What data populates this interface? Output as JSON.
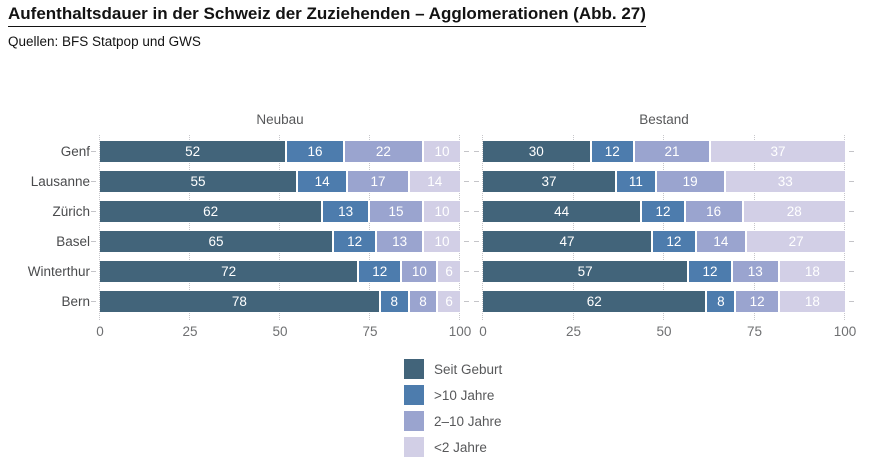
{
  "header": {
    "title": "Aufenthaltsdauer in der Schweiz der Zuziehenden – Agglomerationen  (Abb. 27)",
    "source": "Quellen: BFS Statpop und GWS"
  },
  "chart_data": {
    "type": "bar",
    "orientation": "horizontal",
    "stacked": true,
    "grid": "dotted-vertical",
    "categories": [
      "Genf",
      "Lausanne",
      "Zürich",
      "Basel",
      "Winterthur",
      "Bern"
    ],
    "xlim": [
      0,
      100
    ],
    "xticks": [
      0,
      25,
      50,
      75,
      100
    ],
    "panels": [
      {
        "title": "Neubau",
        "series": [
          {
            "name": "Seit Geburt",
            "values": [
              52,
              55,
              62,
              65,
              72,
              78
            ]
          },
          {
            "name": ">10 Jahre",
            "values": [
              16,
              14,
              13,
              12,
              12,
              8
            ]
          },
          {
            "name": "2–10 Jahre",
            "values": [
              22,
              17,
              15,
              13,
              10,
              8
            ]
          },
          {
            "name": "<2 Jahre",
            "values": [
              10,
              14,
              10,
              10,
              6,
              6
            ]
          }
        ]
      },
      {
        "title": "Bestand",
        "series": [
          {
            "name": "Seit Geburt",
            "values": [
              30,
              37,
              44,
              47,
              57,
              62
            ]
          },
          {
            "name": ">10 Jahre",
            "values": [
              12,
              11,
              12,
              12,
              12,
              8
            ]
          },
          {
            "name": "2–10 Jahre",
            "values": [
              21,
              19,
              16,
              14,
              13,
              12
            ]
          },
          {
            "name": "<2 Jahre",
            "values": [
              37,
              33,
              28,
              27,
              18,
              18
            ]
          }
        ]
      }
    ],
    "legend": [
      {
        "label": "Seit Geburt",
        "color": "#42647a"
      },
      {
        "label": ">10 Jahre",
        "color": "#4d7cad"
      },
      {
        "label": "2–10 Jahre",
        "color": "#9aa4cf"
      },
      {
        "label": "<2 Jahre",
        "color": "#d2cfe6"
      }
    ],
    "legend_position": "bottom-center"
  }
}
